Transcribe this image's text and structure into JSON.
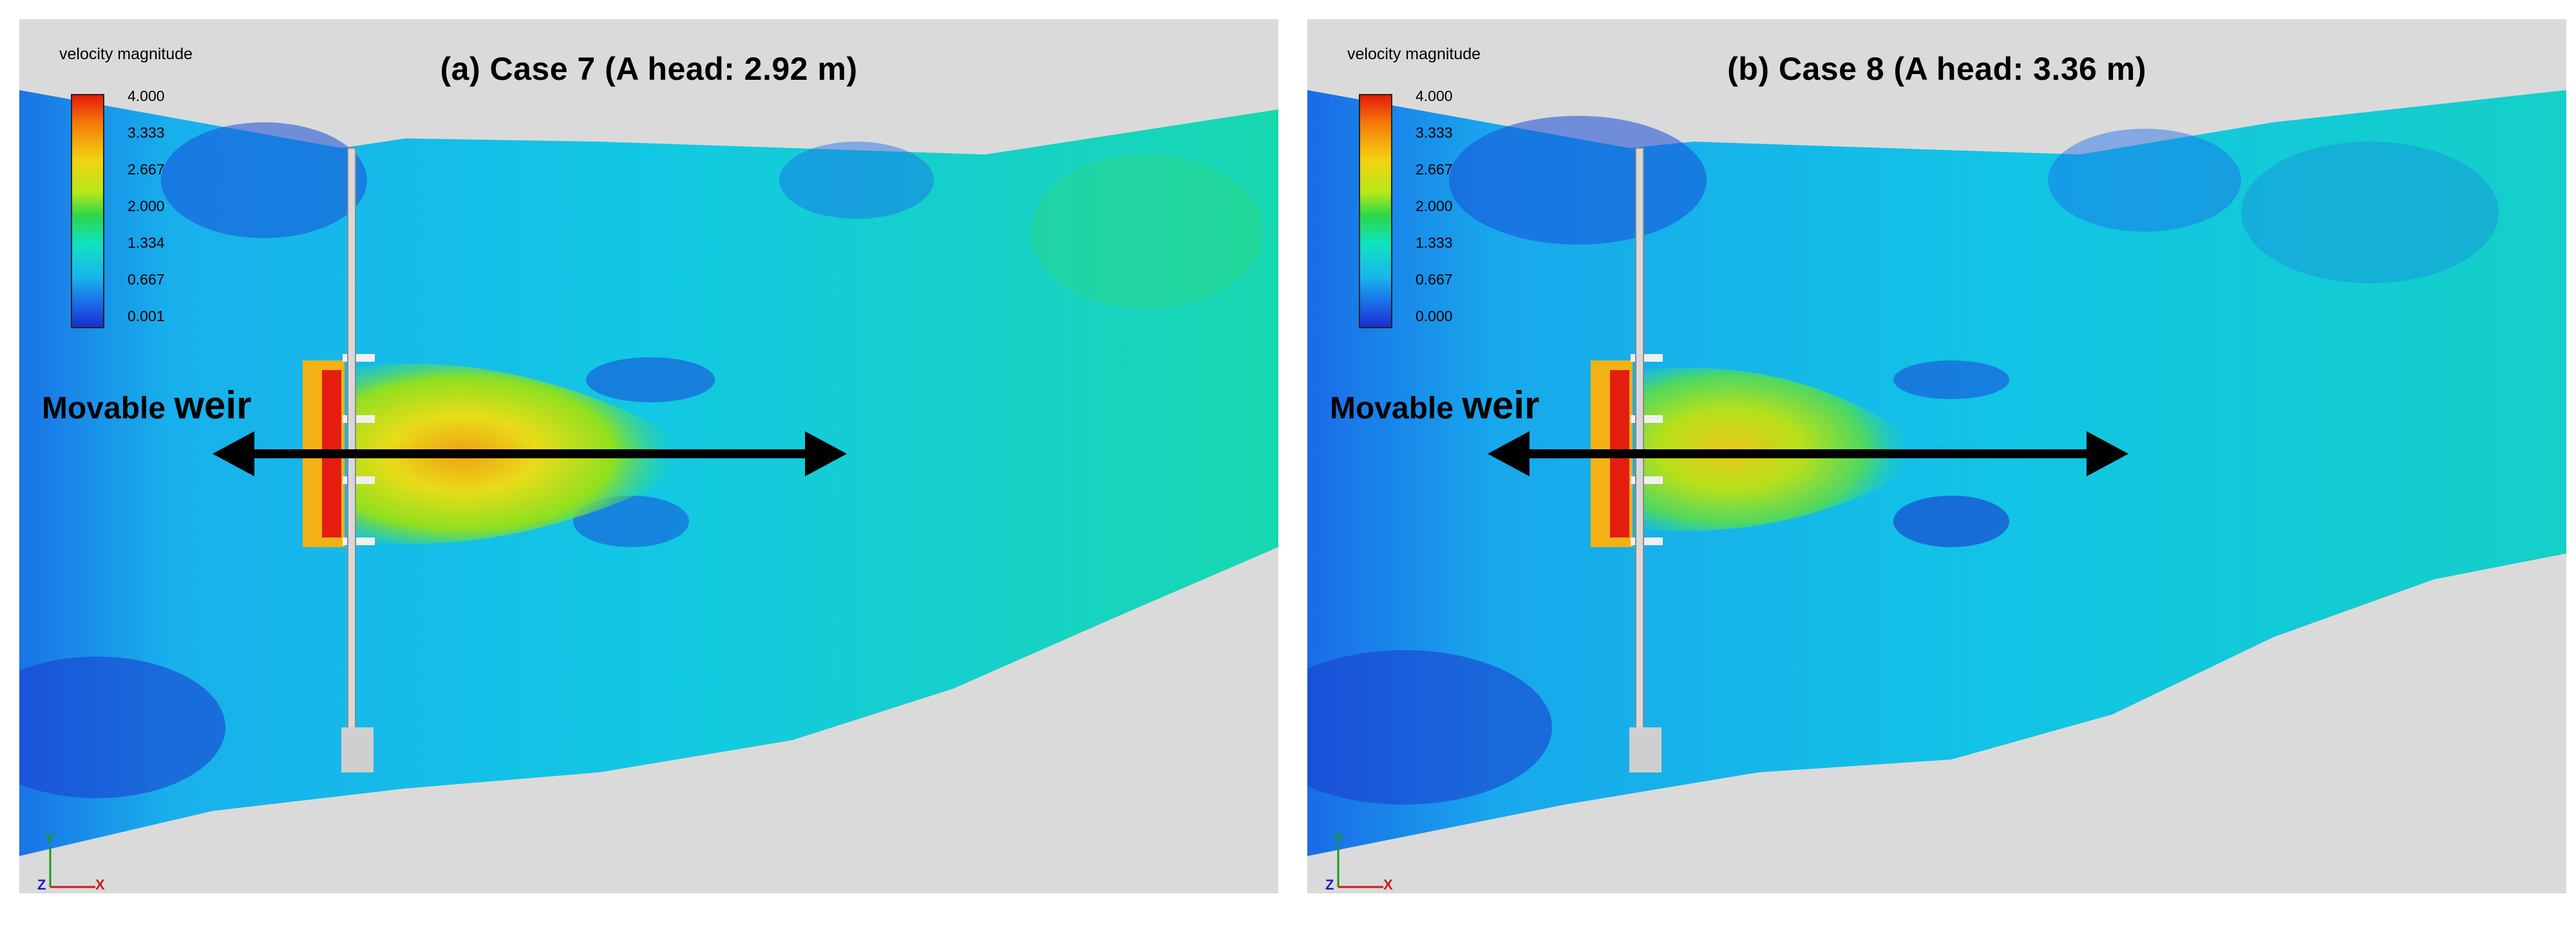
{
  "panels": [
    {
      "id": "a",
      "title": "(a) Case 7 (A head: 2.92 m)",
      "legend_title": "velocity magnitude",
      "legend_ticks": [
        "4.000",
        "3.333",
        "2.667",
        "2.000",
        "1.334",
        "0.667",
        "0.001"
      ],
      "weir_label_prefix": "Movable ",
      "weir_label_word": "weir",
      "axis_y": "Y",
      "axis_z": "Z",
      "axis_x": "X"
    },
    {
      "id": "b",
      "title": "(b) Case 8 (A head: 3.36 m)",
      "legend_title": "velocity magnitude",
      "legend_ticks": [
        "4.000",
        "3.333",
        "2.667",
        "2.000",
        "1.333",
        "0.667",
        "0.000"
      ],
      "weir_label_prefix": "Movable ",
      "weir_label_word": "weir",
      "axis_y": "Y",
      "axis_z": "Z",
      "axis_x": "X"
    }
  ],
  "colormap": [
    "#1a2ed0",
    "#1a6be8",
    "#18b8ec",
    "#10e3c0",
    "#2ad84a",
    "#b4e81a",
    "#f3d310",
    "#f57a0a",
    "#e61a0a"
  ]
}
